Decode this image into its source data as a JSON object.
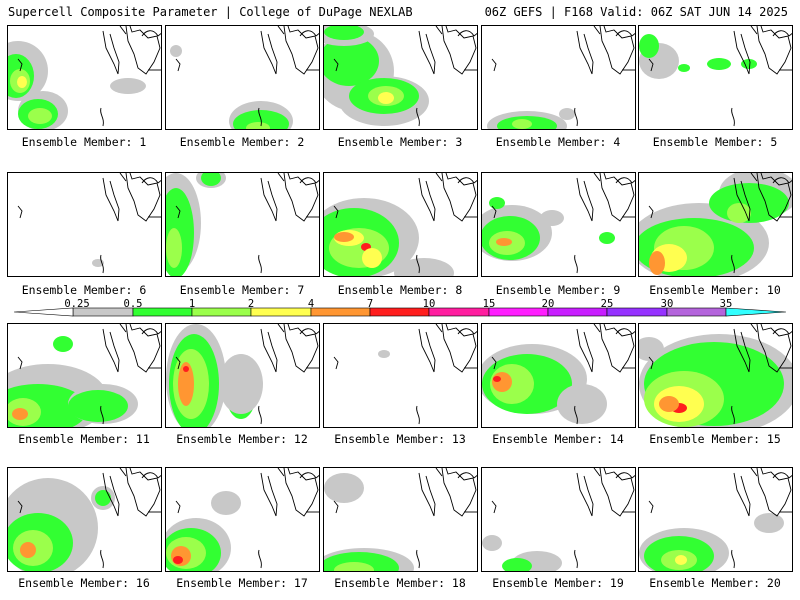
{
  "header": {
    "left": "Supercell Composite Parameter | College of DuPage NEXLAB",
    "right": "06Z GEFS | F168 Valid: 06Z SAT JUN 14 2025"
  },
  "colorbar": {
    "ticks": [
      "0.25",
      "0.5",
      "1",
      "2",
      "4",
      "7",
      "10",
      "15",
      "20",
      "25",
      "30",
      "35"
    ],
    "colors": [
      "#c8c8c8",
      "#32ff32",
      "#9bff4b",
      "#ffff50",
      "#ff9632",
      "#ff1e1e",
      "#ff1ea0",
      "#ff1eff",
      "#c81eff",
      "#9632ff",
      "#b464dc",
      "#32ffff"
    ]
  },
  "panels": [
    {
      "label": "Ensemble Member: 1"
    },
    {
      "label": "Ensemble Member: 2"
    },
    {
      "label": "Ensemble Member: 3"
    },
    {
      "label": "Ensemble Member: 4"
    },
    {
      "label": "Ensemble Member: 5"
    },
    {
      "label": "Ensemble Member: 6"
    },
    {
      "label": "Ensemble Member: 7"
    },
    {
      "label": "Ensemble Member: 8"
    },
    {
      "label": "Ensemble Member: 9"
    },
    {
      "label": "Ensemble Member: 10"
    },
    {
      "label": "Ensemble Member: 11"
    },
    {
      "label": "Ensemble Member: 12"
    },
    {
      "label": "Ensemble Member: 13"
    },
    {
      "label": "Ensemble Member: 14"
    },
    {
      "label": "Ensemble Member: 15"
    },
    {
      "label": "Ensemble Member: 16"
    },
    {
      "label": "Ensemble Member: 17"
    },
    {
      "label": "Ensemble Member: 18"
    },
    {
      "label": "Ensemble Member: 19"
    },
    {
      "label": "Ensemble Member: 20"
    }
  ]
}
